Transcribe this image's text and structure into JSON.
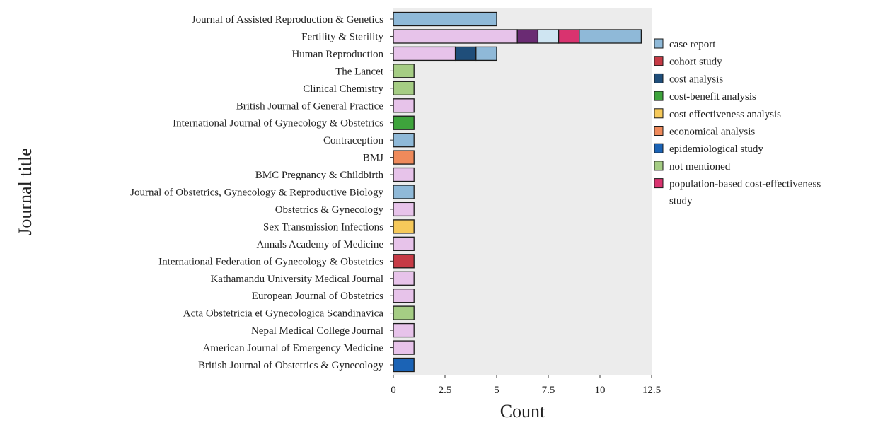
{
  "chart_data": {
    "type": "bar",
    "orientation": "horizontal",
    "stacked": true,
    "xlabel": "Count",
    "ylabel": "Journal title",
    "xlim": [
      0,
      12.5
    ],
    "xticks": [
      "0",
      "2.5",
      "5",
      "7.5",
      "10",
      "12.5"
    ],
    "grid": false,
    "legend_position": "right",
    "categories": [
      "Journal of Assisted Reproduction & Genetics",
      "Fertility & Sterility",
      "Human Reproduction",
      "The Lancet",
      "Clinical Chemistry",
      "British Journal of General Practice",
      "International Journal of Gynecology  & Obstetrics",
      "Contraception",
      "BMJ",
      "BMC Pregnancy & Childbirth",
      "Journal of Obstetrics, Gynecology & Reproductive Biology",
      "Obstetrics & Gynecology",
      "Sex Transmission Infections",
      "Annals Academy of Medicine",
      "International Federation of Gynecology & Obstetrics",
      "Kathamandu University Medical Journal",
      "European Journal of Obstetrics",
      "Acta Obstetricia et Gynecologica Scandinavica",
      "Nepal Medical College Journal",
      "American Journal of Emergency Medicine",
      "British Journal of Obstetrics & Gynecology"
    ],
    "segments": [
      [
        {
          "color": "#8fb9d8",
          "value": 5
        }
      ],
      [
        {
          "color": "#e7c3ea",
          "value": 6
        },
        {
          "color": "#6a2b73",
          "value": 1
        },
        {
          "color": "#cfe5f2",
          "value": 1
        },
        {
          "color": "#d9336f",
          "value": 1
        },
        {
          "color": "#8fb9d8",
          "value": 3
        }
      ],
      [
        {
          "color": "#e7c3ea",
          "value": 3
        },
        {
          "color": "#1f4e7a",
          "value": 1
        },
        {
          "color": "#8fb9d8",
          "value": 1
        }
      ],
      [
        {
          "color": "#a5cd84",
          "value": 1
        }
      ],
      [
        {
          "color": "#a5cd84",
          "value": 1
        }
      ],
      [
        {
          "color": "#e7c3ea",
          "value": 1
        }
      ],
      [
        {
          "color": "#3ea43c",
          "value": 1
        }
      ],
      [
        {
          "color": "#8fb9d8",
          "value": 1
        }
      ],
      [
        {
          "color": "#ef8a5b",
          "value": 1
        }
      ],
      [
        {
          "color": "#e7c3ea",
          "value": 1
        }
      ],
      [
        {
          "color": "#8fb9d8",
          "value": 1
        }
      ],
      [
        {
          "color": "#e7c3ea",
          "value": 1
        }
      ],
      [
        {
          "color": "#f6c95a",
          "value": 1
        }
      ],
      [
        {
          "color": "#e7c3ea",
          "value": 1
        }
      ],
      [
        {
          "color": "#c63a45",
          "value": 1
        }
      ],
      [
        {
          "color": "#e7c3ea",
          "value": 1
        }
      ],
      [
        {
          "color": "#e7c3ea",
          "value": 1
        }
      ],
      [
        {
          "color": "#a5cd84",
          "value": 1
        }
      ],
      [
        {
          "color": "#e7c3ea",
          "value": 1
        }
      ],
      [
        {
          "color": "#e7c3ea",
          "value": 1
        }
      ],
      [
        {
          "color": "#1b63b5",
          "value": 1
        }
      ]
    ],
    "legend": [
      {
        "label": "case report",
        "color": "#8fb9d8"
      },
      {
        "label": "cohort study",
        "color": "#c63a45"
      },
      {
        "label": "cost analysis",
        "color": "#1f4e7a"
      },
      {
        "label": "cost-benefit analysis",
        "color": "#3ea43c"
      },
      {
        "label": "cost effectiveness analysis",
        "color": "#f6c95a"
      },
      {
        "label": "economical analysis",
        "color": "#ef8a5b"
      },
      {
        "label": "epidemiological study",
        "color": "#1b63b5"
      },
      {
        "label": "not mentioned",
        "color": "#a5cd84"
      },
      {
        "label": "population-based cost-effectiveness study",
        "label_lines": [
          "population-based cost-effectiveness",
          "study"
        ],
        "color": "#d9336f"
      }
    ],
    "plot_background": "#ececec"
  }
}
